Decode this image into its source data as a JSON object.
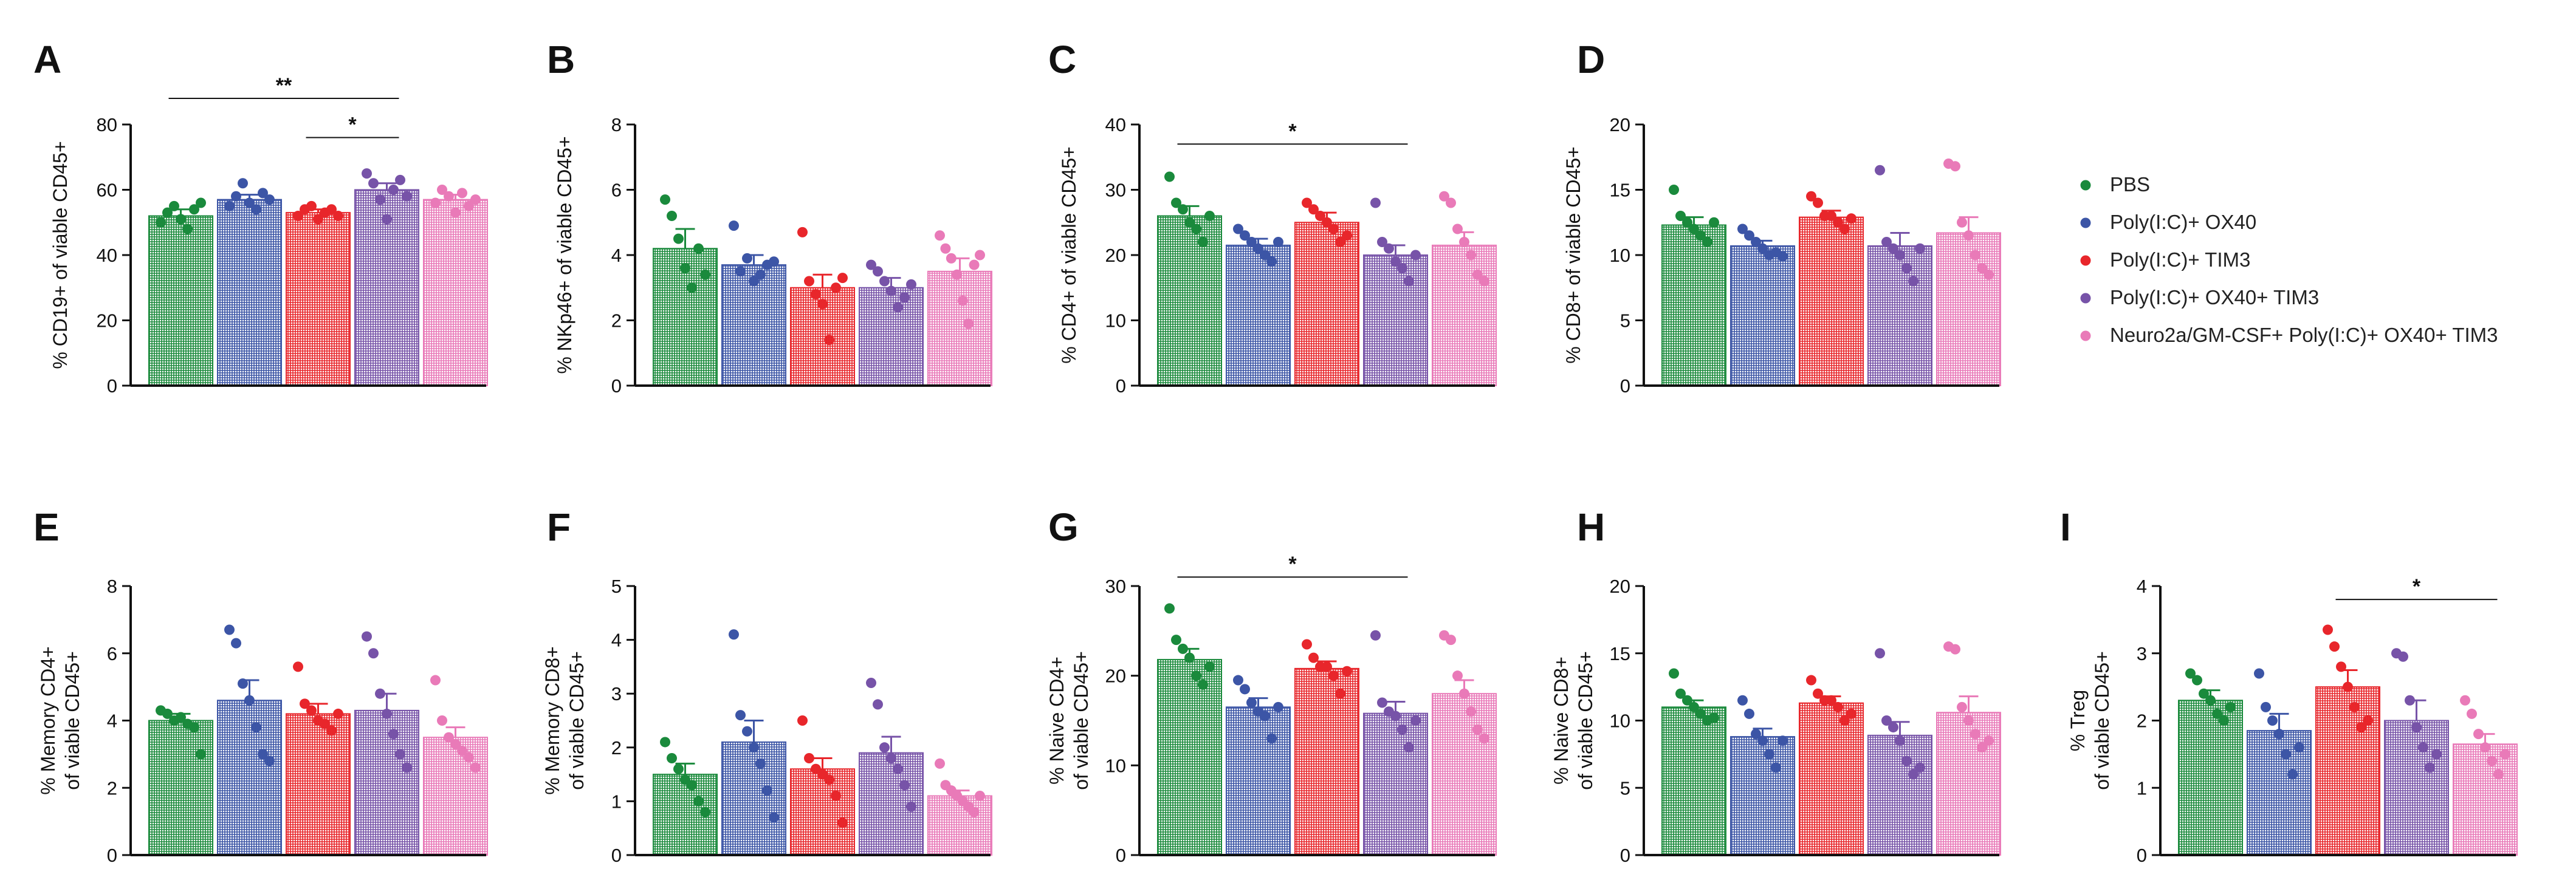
{
  "legend": [
    {
      "label": "PBS",
      "color": "#1a8a3c"
    },
    {
      "label": "Poly(I:C)+ OX40",
      "color": "#3c55a6"
    },
    {
      "label": "Poly(I:C)+ TIM3",
      "color": "#e8262b"
    },
    {
      "label": "Poly(I:C)+ OX40+ TIM3",
      "color": "#7753a8"
    },
    {
      "label": "Neuro2a/GM-CSF+ Poly(I:C)+ OX40+ TIM3",
      "color": "#e97ab8"
    }
  ],
  "chart_data": [
    {
      "panel": "A",
      "type": "bar",
      "ylabel": [
        "% CD19+ of viable CD45+"
      ],
      "ylim": [
        0,
        80
      ],
      "yticks": [
        0,
        20,
        40,
        60,
        80
      ],
      "series": [
        {
          "name": "PBS",
          "mean": 52,
          "sem": 2,
          "points": [
            50,
            53,
            55,
            51,
            48,
            54,
            56
          ]
        },
        {
          "name": "Poly(I:C)+ OX40",
          "mean": 57,
          "sem": 1.5,
          "points": [
            55,
            58,
            62,
            56,
            54,
            59,
            57
          ]
        },
        {
          "name": "Poly(I:C)+ TIM3",
          "mean": 53,
          "sem": 1,
          "points": [
            52,
            54,
            55,
            51,
            53,
            54,
            52
          ]
        },
        {
          "name": "Poly(I:C)+ OX40+ TIM3",
          "mean": 60,
          "sem": 2,
          "points": [
            65,
            62,
            57,
            51,
            60,
            63,
            58
          ]
        },
        {
          "name": "Neuro2a/GM-CSF+ Poly(I:C)+ OX40+ TIM3",
          "mean": 57,
          "sem": 1.5,
          "points": [
            56,
            60,
            58,
            53,
            59,
            55,
            57
          ]
        }
      ],
      "significance": [
        {
          "from": 0,
          "to": 3,
          "label": "**",
          "y": 88
        },
        {
          "from": 2,
          "to": 3,
          "label": "*",
          "y": 76
        }
      ]
    },
    {
      "panel": "B",
      "type": "bar",
      "ylabel": [
        "% NKp46+ of viable CD45+"
      ],
      "ylim": [
        0,
        8
      ],
      "yticks": [
        0,
        2,
        4,
        6,
        8
      ],
      "series": [
        {
          "name": "PBS",
          "mean": 4.2,
          "sem": 0.6,
          "points": [
            5.7,
            5.2,
            4.5,
            3.6,
            3.0,
            4.2,
            3.4
          ]
        },
        {
          "name": "Poly(I:C)+ OX40",
          "mean": 3.7,
          "sem": 0.3,
          "points": [
            4.9,
            3.5,
            3.9,
            3.2,
            3.4,
            3.7,
            3.8
          ]
        },
        {
          "name": "Poly(I:C)+ TIM3",
          "mean": 3.0,
          "sem": 0.4,
          "points": [
            4.7,
            3.2,
            2.8,
            2.5,
            1.4,
            3.0,
            3.3
          ]
        },
        {
          "name": "Poly(I:C)+ OX40+ TIM3",
          "mean": 3.0,
          "sem": 0.3,
          "points": [
            3.7,
            3.5,
            3.2,
            2.9,
            2.4,
            2.7,
            3.1
          ]
        },
        {
          "name": "Neuro2a/GM-CSF+ Poly(I:C)+ OX40+ TIM3",
          "mean": 3.5,
          "sem": 0.4,
          "points": [
            4.6,
            4.2,
            3.9,
            3.4,
            2.6,
            1.9,
            3.7,
            4.0
          ]
        }
      ],
      "significance": []
    },
    {
      "panel": "C",
      "type": "bar",
      "ylabel": [
        "% CD4+ of viable CD45+"
      ],
      "ylim": [
        0,
        40
      ],
      "yticks": [
        0,
        10,
        20,
        30,
        40
      ],
      "series": [
        {
          "name": "PBS",
          "mean": 26,
          "sem": 1.5,
          "points": [
            32,
            28,
            27,
            25,
            24,
            22,
            26
          ]
        },
        {
          "name": "Poly(I:C)+ OX40",
          "mean": 21.5,
          "sem": 1,
          "points": [
            24,
            23,
            22,
            21,
            20,
            19,
            22
          ]
        },
        {
          "name": "Poly(I:C)+ TIM3",
          "mean": 25,
          "sem": 1.5,
          "points": [
            28,
            27,
            26,
            25,
            24,
            22,
            23
          ]
        },
        {
          "name": "Poly(I:C)+ OX40+ TIM3",
          "mean": 20,
          "sem": 1.5,
          "points": [
            28,
            22,
            21,
            19,
            18,
            16,
            20
          ]
        },
        {
          "name": "Neuro2a/GM-CSF+ Poly(I:C)+ OX40+ TIM3",
          "mean": 21.5,
          "sem": 2,
          "points": [
            29,
            28,
            24,
            22,
            20,
            17,
            16
          ]
        }
      ],
      "significance": [
        {
          "from": 0,
          "to": 3,
          "label": "*",
          "y": 37
        }
      ]
    },
    {
      "panel": "D",
      "type": "bar",
      "ylabel": [
        "% CD8+ of viable CD45+"
      ],
      "ylim": [
        0,
        20
      ],
      "yticks": [
        0,
        5,
        10,
        15,
        20
      ],
      "series": [
        {
          "name": "PBS",
          "mean": 12.3,
          "sem": 0.6,
          "points": [
            15,
            13,
            12.5,
            12,
            11.5,
            11,
            12.5
          ]
        },
        {
          "name": "Poly(I:C)+ OX40",
          "mean": 10.7,
          "sem": 0.4,
          "points": [
            12,
            11.5,
            11,
            10.5,
            10,
            10.2,
            9.9
          ]
        },
        {
          "name": "Poly(I:C)+ TIM3",
          "mean": 12.9,
          "sem": 0.5,
          "points": [
            14.5,
            14,
            13,
            13,
            12.5,
            12,
            12.8
          ]
        },
        {
          "name": "Poly(I:C)+ OX40+ TIM3",
          "mean": 10.7,
          "sem": 1,
          "points": [
            16.5,
            11,
            10.5,
            10,
            9,
            8,
            10.5
          ]
        },
        {
          "name": "Neuro2a/GM-CSF+ Poly(I:C)+ OX40+ TIM3",
          "mean": 11.7,
          "sem": 1.2,
          "points": [
            17,
            16.8,
            12.5,
            11.5,
            10,
            9,
            8.5
          ]
        }
      ],
      "significance": []
    },
    {
      "panel": "E",
      "type": "bar",
      "ylabel": [
        "% Memory CD4+",
        "of viable CD45+"
      ],
      "ylim": [
        0,
        8
      ],
      "yticks": [
        0,
        2,
        4,
        6,
        8
      ],
      "series": [
        {
          "name": "PBS",
          "mean": 4.0,
          "sem": 0.2,
          "points": [
            4.3,
            4.2,
            4.0,
            4.1,
            3.9,
            3.8,
            3.0
          ]
        },
        {
          "name": "Poly(I:C)+ OX40",
          "mean": 4.6,
          "sem": 0.6,
          "points": [
            6.7,
            6.3,
            5.1,
            4.6,
            3.8,
            3.0,
            2.8
          ]
        },
        {
          "name": "Poly(I:C)+ TIM3",
          "mean": 4.2,
          "sem": 0.3,
          "points": [
            5.6,
            4.5,
            4.3,
            4.0,
            3.9,
            3.7,
            4.2
          ]
        },
        {
          "name": "Poly(I:C)+ OX40+ TIM3",
          "mean": 4.3,
          "sem": 0.5,
          "points": [
            6.5,
            6.0,
            4.8,
            4.2,
            3.6,
            3.0,
            2.6
          ]
        },
        {
          "name": "Neuro2a/GM-CSF+ Poly(I:C)+ OX40+ TIM3",
          "mean": 3.5,
          "sem": 0.3,
          "points": [
            5.2,
            4.0,
            3.5,
            3.3,
            3.1,
            2.9,
            2.6
          ]
        }
      ],
      "significance": []
    },
    {
      "panel": "F",
      "type": "bar",
      "ylabel": [
        "% Memory CD8+",
        "of viable CD45+"
      ],
      "ylim": [
        0,
        5
      ],
      "yticks": [
        0,
        1,
        2,
        3,
        4,
        5
      ],
      "series": [
        {
          "name": "PBS",
          "mean": 1.5,
          "sem": 0.2,
          "points": [
            2.1,
            1.8,
            1.6,
            1.4,
            1.3,
            1.0,
            0.8
          ]
        },
        {
          "name": "Poly(I:C)+ OX40",
          "mean": 2.1,
          "sem": 0.4,
          "points": [
            4.1,
            2.6,
            2.3,
            2.0,
            1.7,
            1.2,
            0.7
          ]
        },
        {
          "name": "Poly(I:C)+ TIM3",
          "mean": 1.6,
          "sem": 0.2,
          "points": [
            2.5,
            1.8,
            1.6,
            1.5,
            1.4,
            1.1,
            0.6
          ]
        },
        {
          "name": "Poly(I:C)+ OX40+ TIM3",
          "mean": 1.9,
          "sem": 0.3,
          "points": [
            3.2,
            2.8,
            2.0,
            1.8,
            1.6,
            1.3,
            0.9
          ]
        },
        {
          "name": "Neuro2a/GM-CSF+ Poly(I:C)+ OX40+ TIM3",
          "mean": 1.1,
          "sem": 0.1,
          "points": [
            1.7,
            1.3,
            1.2,
            1.1,
            1.0,
            0.9,
            0.8,
            1.1
          ]
        }
      ],
      "significance": []
    },
    {
      "panel": "G",
      "type": "bar",
      "ylabel": [
        "% Naive CD4+",
        "of viable CD45+"
      ],
      "ylim": [
        0,
        30
      ],
      "yticks": [
        0,
        10,
        20,
        30
      ],
      "series": [
        {
          "name": "PBS",
          "mean": 21.8,
          "sem": 1.2,
          "points": [
            27.5,
            24,
            23,
            22,
            20,
            19,
            21
          ]
        },
        {
          "name": "Poly(I:C)+ OX40",
          "mean": 16.5,
          "sem": 1,
          "points": [
            19.5,
            18.5,
            17,
            16,
            15.5,
            13,
            16.5
          ]
        },
        {
          "name": "Poly(I:C)+ TIM3",
          "mean": 20.8,
          "sem": 0.8,
          "points": [
            23.5,
            22,
            21,
            21,
            20,
            18,
            20.5
          ]
        },
        {
          "name": "Poly(I:C)+ OX40+ TIM3",
          "mean": 15.8,
          "sem": 1.3,
          "points": [
            24.5,
            17,
            16,
            15.5,
            14,
            12,
            15
          ]
        },
        {
          "name": "Neuro2a/GM-CSF+ Poly(I:C)+ OX40+ TIM3",
          "mean": 18.0,
          "sem": 1.5,
          "points": [
            24.5,
            24,
            20,
            18,
            16,
            14,
            13
          ]
        }
      ],
      "significance": [
        {
          "from": 0,
          "to": 3,
          "label": "*",
          "y": 31
        }
      ]
    },
    {
      "panel": "H",
      "type": "bar",
      "ylabel": [
        "% Naive CD8+",
        "of viable CD45+"
      ],
      "ylim": [
        0,
        20
      ],
      "yticks": [
        0,
        5,
        10,
        15,
        20
      ],
      "series": [
        {
          "name": "PBS",
          "mean": 11.0,
          "sem": 0.5,
          "points": [
            13.5,
            12,
            11.5,
            11,
            10.5,
            10,
            10.2
          ]
        },
        {
          "name": "Poly(I:C)+ OX40",
          "mean": 8.8,
          "sem": 0.6,
          "points": [
            11.5,
            10.5,
            9,
            8.5,
            7.5,
            6.5,
            8.5
          ]
        },
        {
          "name": "Poly(I:C)+ TIM3",
          "mean": 11.3,
          "sem": 0.5,
          "points": [
            13,
            12,
            11.5,
            11.5,
            11,
            10,
            10.5
          ]
        },
        {
          "name": "Poly(I:C)+ OX40+ TIM3",
          "mean": 8.9,
          "sem": 1,
          "points": [
            15,
            10,
            9.5,
            8.5,
            7,
            6,
            6.5
          ]
        },
        {
          "name": "Neuro2a/GM-CSF+ Poly(I:C)+ OX40+ TIM3",
          "mean": 10.6,
          "sem": 1.2,
          "points": [
            15.5,
            15.3,
            11,
            10,
            9,
            8,
            8.5
          ]
        }
      ],
      "significance": []
    },
    {
      "panel": "I",
      "type": "bar",
      "ylabel": [
        "% Treg",
        "of viable CD45+"
      ],
      "ylim": [
        0,
        4
      ],
      "yticks": [
        0,
        1,
        2,
        3,
        4
      ],
      "series": [
        {
          "name": "PBS",
          "mean": 2.3,
          "sem": 0.15,
          "points": [
            2.7,
            2.6,
            2.4,
            2.3,
            2.1,
            2.0,
            2.2
          ]
        },
        {
          "name": "Poly(I:C)+ OX40",
          "mean": 1.85,
          "sem": 0.25,
          "points": [
            2.7,
            2.2,
            2.0,
            1.8,
            1.5,
            1.2,
            1.6
          ]
        },
        {
          "name": "Poly(I:C)+ TIM3",
          "mean": 2.5,
          "sem": 0.25,
          "points": [
            3.35,
            3.1,
            2.8,
            2.5,
            2.2,
            1.9,
            2.0
          ]
        },
        {
          "name": "Poly(I:C)+ OX40+ TIM3",
          "mean": 2.0,
          "sem": 0.3,
          "points": [
            3.0,
            2.95,
            2.3,
            1.9,
            1.6,
            1.3,
            1.5
          ]
        },
        {
          "name": "Neuro2a/GM-CSF+ Poly(I:C)+ OX40+ TIM3",
          "mean": 1.65,
          "sem": 0.15,
          "points": [
            2.3,
            2.1,
            1.8,
            1.6,
            1.4,
            1.2,
            1.5
          ]
        }
      ],
      "significance": [
        {
          "from": 2,
          "to": 4,
          "label": "*",
          "y": 3.8
        }
      ]
    }
  ]
}
